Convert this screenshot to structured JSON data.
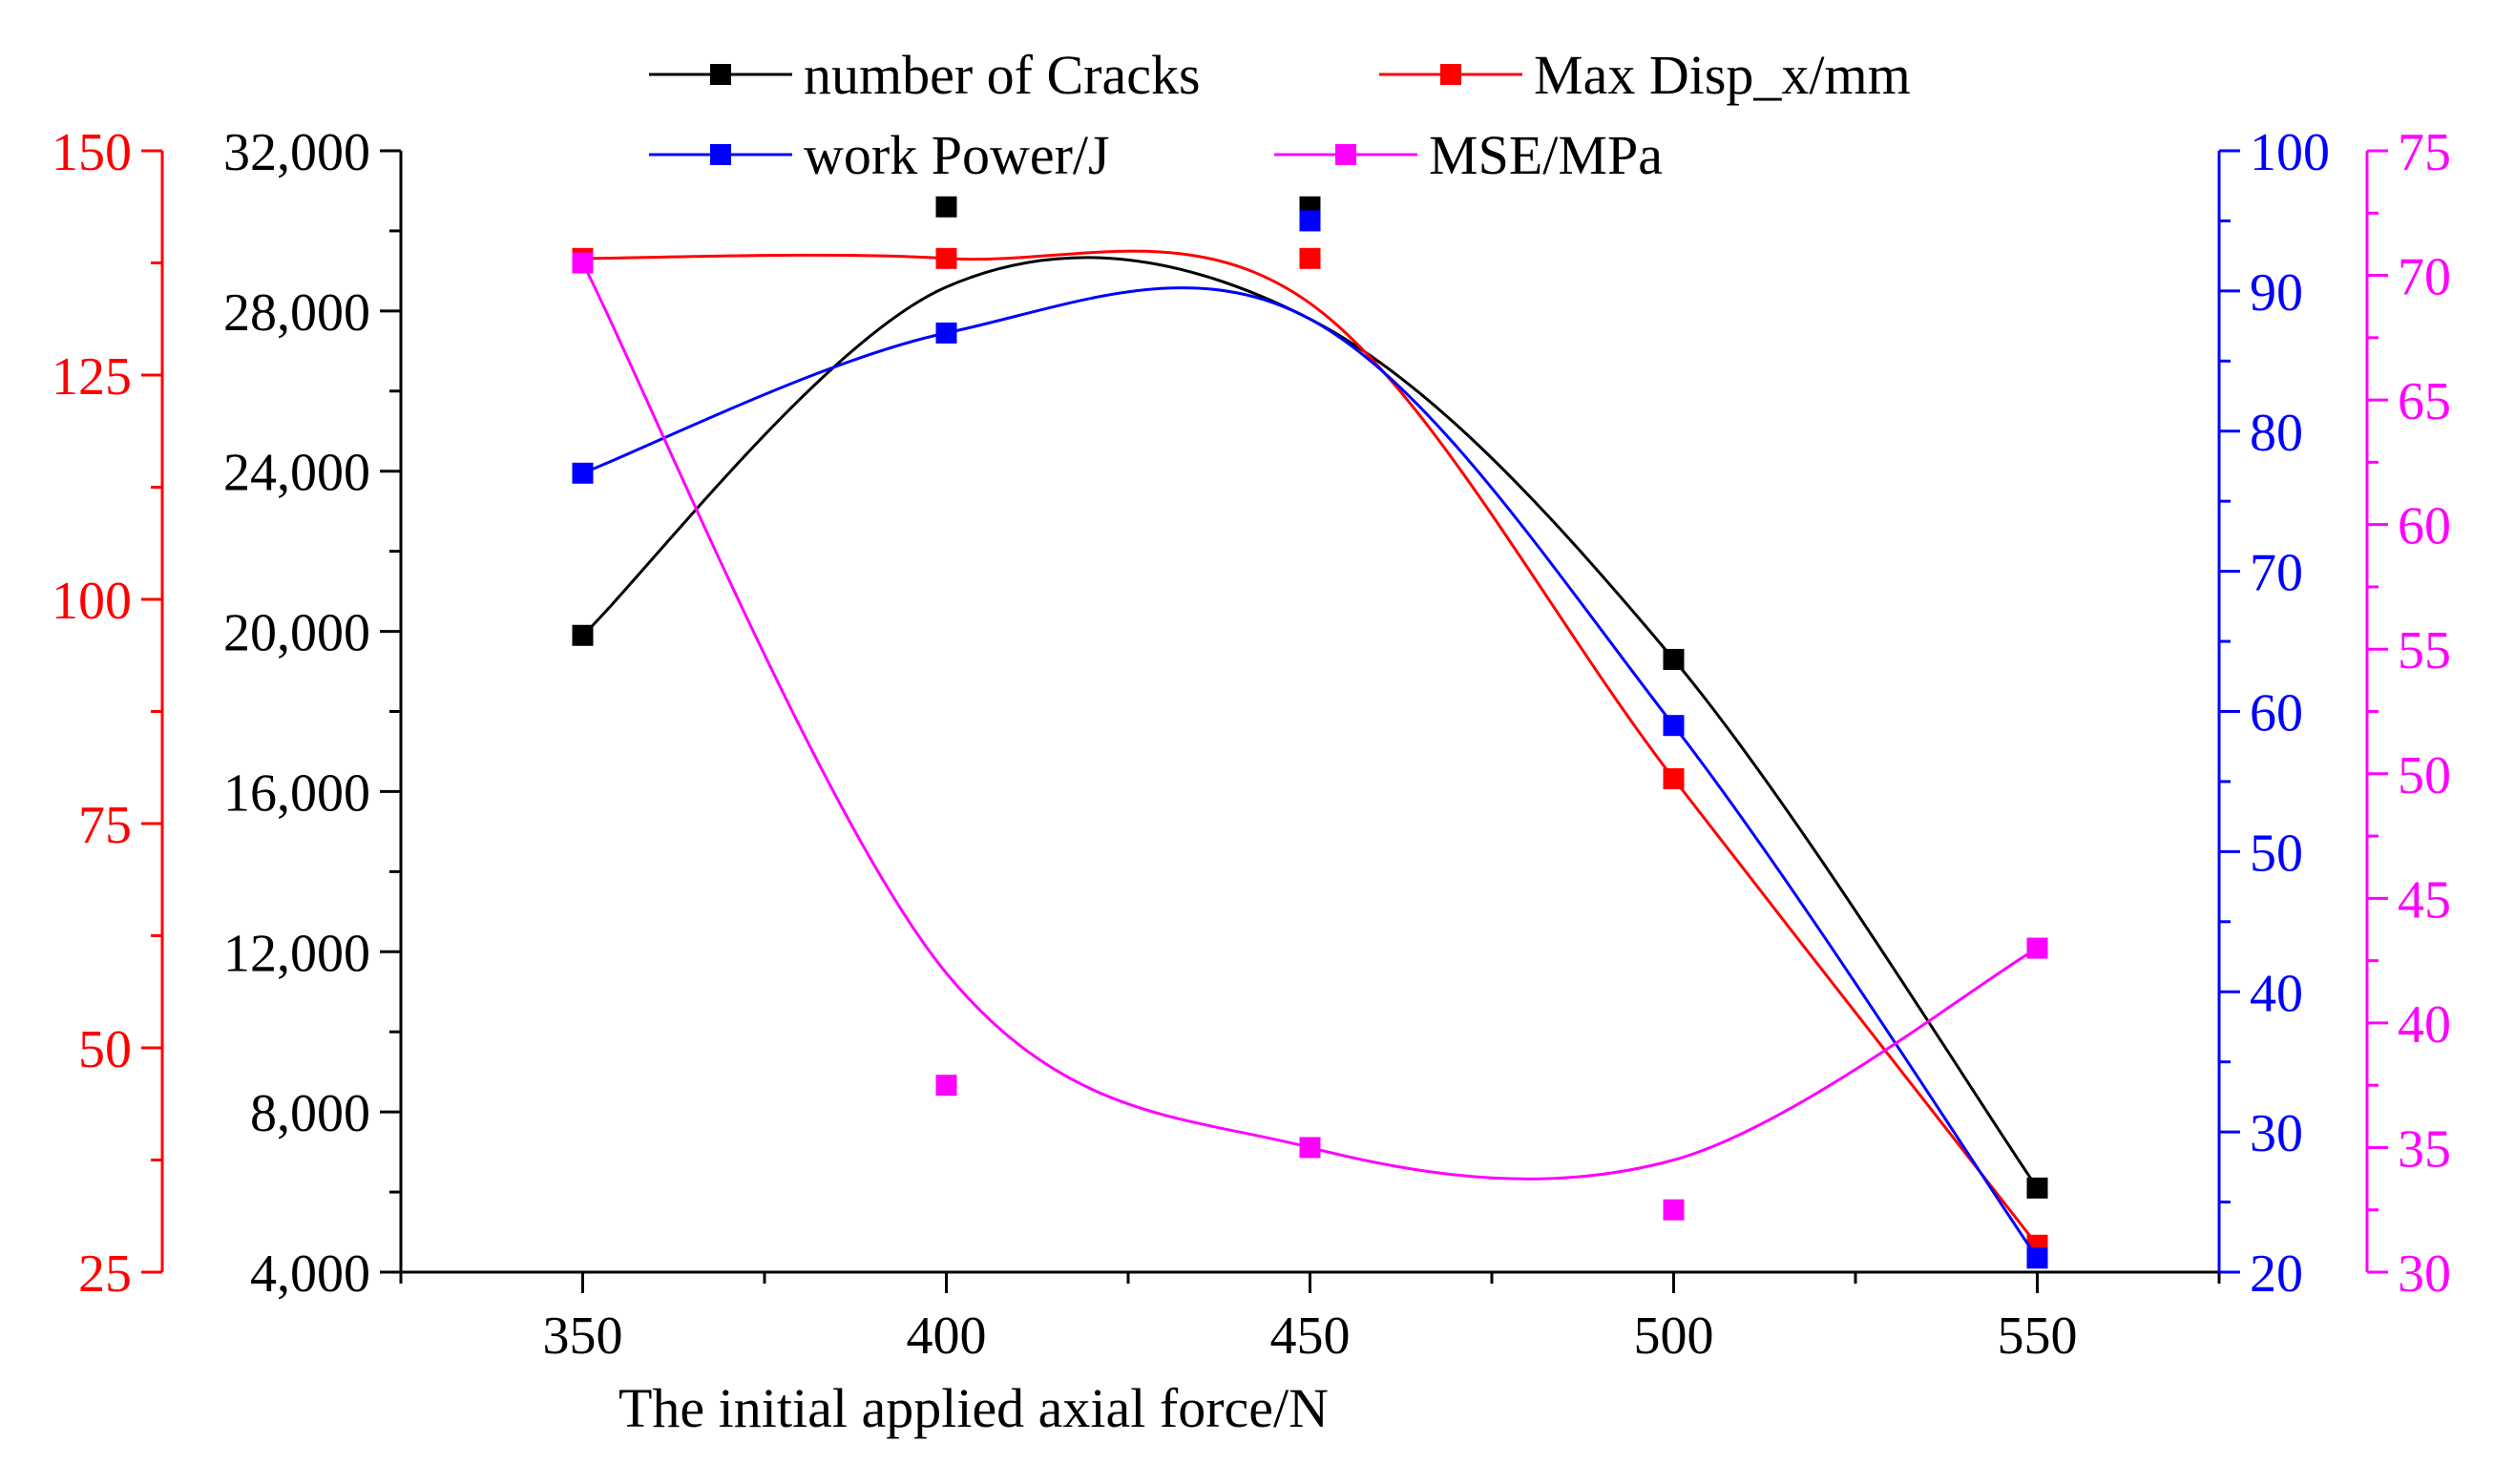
{
  "chart_data": {
    "type": "line",
    "title": "",
    "xlabel": "The initial applied  axial force/N",
    "x": [
      350,
      400,
      450,
      500,
      550
    ],
    "xlim": [
      325,
      575
    ],
    "x_ticks": [
      350,
      400,
      450,
      500,
      550
    ],
    "x_tick_labels": [
      "350",
      "400",
      "450",
      "500",
      "550"
    ],
    "axes": {
      "cracks": {
        "side": "left-inner",
        "color": "#000000",
        "ylim": [
          4000,
          32000
        ],
        "ticks": [
          4000,
          8000,
          12000,
          16000,
          20000,
          24000,
          28000,
          32000
        ],
        "tick_labels": [
          "4,000",
          "8,000",
          "12,000",
          "16,000",
          "20,000",
          "24,000",
          "28,000",
          "32,000"
        ]
      },
      "disp": {
        "side": "left-outer",
        "color": "#ff0000",
        "ylim": [
          25,
          150
        ],
        "ticks": [
          25,
          50,
          75,
          100,
          125,
          150
        ],
        "tick_labels": [
          "25",
          "50",
          "75",
          "100",
          "125",
          "150"
        ]
      },
      "power": {
        "side": "right-inner",
        "color": "#0000ff",
        "ylim": [
          20,
          100
        ],
        "ticks": [
          20,
          30,
          40,
          50,
          60,
          70,
          80,
          90,
          100
        ],
        "tick_labels": [
          "20",
          "30",
          "40",
          "50",
          "60",
          "70",
          "80",
          "90",
          "100"
        ]
      },
      "mse": {
        "side": "right-outer",
        "color": "#ff00ff",
        "ylim": [
          30,
          75
        ],
        "ticks": [
          30,
          35,
          40,
          45,
          50,
          55,
          60,
          65,
          70,
          75
        ],
        "tick_labels": [
          "30",
          "35",
          "40",
          "45",
          "50",
          "55",
          "60",
          "65",
          "70",
          "75"
        ]
      }
    },
    "series": [
      {
        "name": "number of Cracks",
        "axis": "cracks",
        "color": "#000000",
        "values": [
          19900,
          30600,
          30600,
          19300,
          6100
        ],
        "fit_values": [
          19900,
          28600,
          27800,
          19300,
          6100
        ]
      },
      {
        "name": "Max Disp_x/mm",
        "axis": "disp",
        "color": "#ff0000",
        "values": [
          138,
          138,
          138,
          80,
          28
        ],
        "fit_values": [
          138,
          138,
          133,
          80,
          28
        ]
      },
      {
        "name": "work Power/J",
        "axis": "power",
        "color": "#0000ff",
        "values": [
          77,
          87,
          95,
          59,
          21
        ],
        "fit_values": [
          77,
          87,
          88,
          59,
          21
        ]
      },
      {
        "name": "MSE/MPa",
        "axis": "mse",
        "color": "#ff00ff",
        "values": [
          70.5,
          37.5,
          35,
          32.5,
          43
        ],
        "fit_values": [
          70.5,
          42,
          35,
          34.5,
          43
        ]
      }
    ],
    "legend": {
      "placement": "top",
      "entries": [
        "number of Cracks",
        "Max Disp_x/mm",
        "work Power/J",
        "MSE/MPa"
      ]
    }
  }
}
